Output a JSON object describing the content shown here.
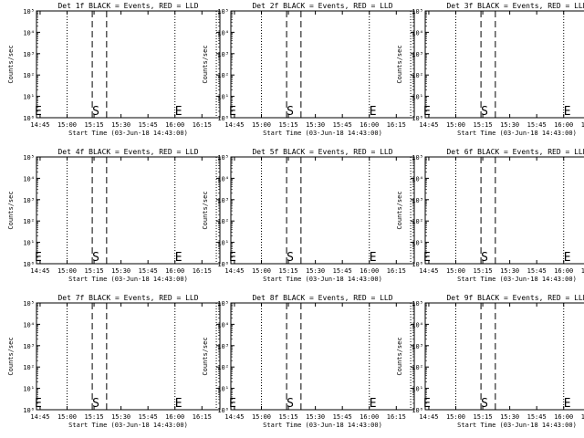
{
  "chart_data": [
    {
      "type": "line",
      "title": "Det 1f BLACK = Events, RED = LLD",
      "xlabel": "Start Time (03-Jun-18 14:43:00)",
      "ylabel": "Counts/sec",
      "xticks": [
        "14:45",
        "15:00",
        "15:15",
        "15:30",
        "15:45",
        "16:00",
        "16:15"
      ],
      "yticks": [
        "10⁰",
        "10¹",
        "10²",
        "10³",
        "10⁴",
        "10⁵"
      ],
      "yscale": "log",
      "ylim": [
        1,
        100000
      ],
      "dotted_lines": [
        "15:00",
        "16:00",
        "16:23"
      ],
      "dashed_lines": [
        "15:14",
        "15:22"
      ],
      "markers": [
        {
          "text": "E",
          "x": "14:44"
        },
        {
          "text": "S",
          "x": "15:16"
        },
        {
          "text": "E",
          "x": "16:02"
        }
      ],
      "series": []
    },
    {
      "type": "line",
      "title": "Det 2f BLACK = Events, RED = LLD",
      "xlabel": "Start Time (03-Jun-18 14:43:00)",
      "ylabel": "Counts/sec",
      "xticks": [
        "14:45",
        "15:00",
        "15:15",
        "15:30",
        "15:45",
        "16:00",
        "16:15"
      ],
      "yticks": [
        "10⁰",
        "10¹",
        "10²",
        "10³",
        "10⁴",
        "10⁵"
      ],
      "yscale": "log",
      "ylim": [
        1,
        100000
      ],
      "dotted_lines": [
        "15:00",
        "16:00",
        "16:23"
      ],
      "dashed_lines": [
        "15:14",
        "15:22"
      ],
      "markers": [
        {
          "text": "E",
          "x": "14:44"
        },
        {
          "text": "S",
          "x": "15:16"
        },
        {
          "text": "E",
          "x": "16:02"
        }
      ],
      "series": []
    },
    {
      "type": "line",
      "title": "Det 3f BLACK = Events, RED = LLD",
      "xlabel": "Start Time (03-Jun-18 14:43:00)",
      "ylabel": "Counts/sec",
      "xticks": [
        "14:45",
        "15:00",
        "15:15",
        "15:30",
        "15:45",
        "16:00",
        "16:15"
      ],
      "yticks": [
        "10⁰",
        "10¹",
        "10²",
        "10³",
        "10⁴",
        "10⁵"
      ],
      "yscale": "log",
      "ylim": [
        1,
        100000
      ],
      "dotted_lines": [
        "15:00",
        "16:00",
        "16:23"
      ],
      "dashed_lines": [
        "15:14",
        "15:22"
      ],
      "markers": [
        {
          "text": "E",
          "x": "14:44"
        },
        {
          "text": "S",
          "x": "15:16"
        },
        {
          "text": "E",
          "x": "16:02"
        }
      ],
      "series": []
    },
    {
      "type": "line",
      "title": "Det 4f BLACK = Events, RED = LLD",
      "xlabel": "Start Time (03-Jun-18 14:43:00)",
      "ylabel": "Counts/sec",
      "xticks": [
        "14:45",
        "15:00",
        "15:15",
        "15:30",
        "15:45",
        "16:00",
        "16:15"
      ],
      "yticks": [
        "10⁰",
        "10¹",
        "10²",
        "10³",
        "10⁴",
        "10⁵"
      ],
      "yscale": "log",
      "ylim": [
        1,
        100000
      ],
      "dotted_lines": [
        "15:00",
        "16:00",
        "16:23"
      ],
      "dashed_lines": [
        "15:14",
        "15:22"
      ],
      "markers": [
        {
          "text": "E",
          "x": "14:44"
        },
        {
          "text": "S",
          "x": "15:16"
        },
        {
          "text": "E",
          "x": "16:02"
        }
      ],
      "series": []
    },
    {
      "type": "line",
      "title": "Det 5f BLACK = Events, RED = LLD",
      "xlabel": "Start Time (03-Jun-18 14:43:00)",
      "ylabel": "Counts/sec",
      "xticks": [
        "14:45",
        "15:00",
        "15:15",
        "15:30",
        "15:45",
        "16:00",
        "16:15"
      ],
      "yticks": [
        "10⁰",
        "10¹",
        "10²",
        "10³",
        "10⁴",
        "10⁵"
      ],
      "yscale": "log",
      "ylim": [
        1,
        100000
      ],
      "dotted_lines": [
        "15:00",
        "16:00",
        "16:23"
      ],
      "dashed_lines": [
        "15:14",
        "15:22"
      ],
      "markers": [
        {
          "text": "E",
          "x": "14:44"
        },
        {
          "text": "S",
          "x": "15:16"
        },
        {
          "text": "E",
          "x": "16:02"
        }
      ],
      "series": []
    },
    {
      "type": "line",
      "title": "Det 6f BLACK = Events, RED = LLD",
      "xlabel": "Start Time (03-Jun-18 14:43:00)",
      "ylabel": "Counts/sec",
      "xticks": [
        "14:45",
        "15:00",
        "15:15",
        "15:30",
        "15:45",
        "16:00",
        "16:15"
      ],
      "yticks": [
        "10⁰",
        "10¹",
        "10²",
        "10³",
        "10⁴",
        "10⁵"
      ],
      "yscale": "log",
      "ylim": [
        1,
        100000
      ],
      "dotted_lines": [
        "15:00",
        "16:00",
        "16:23"
      ],
      "dashed_lines": [
        "15:14",
        "15:22"
      ],
      "markers": [
        {
          "text": "E",
          "x": "14:44"
        },
        {
          "text": "S",
          "x": "15:16"
        },
        {
          "text": "E",
          "x": "16:02"
        }
      ],
      "series": []
    },
    {
      "type": "line",
      "title": "Det 7f BLACK = Events, RED = LLD",
      "xlabel": "Start Time (03-Jun-18 14:43:00)",
      "ylabel": "Counts/sec",
      "xticks": [
        "14:45",
        "15:00",
        "15:15",
        "15:30",
        "15:45",
        "16:00",
        "16:15"
      ],
      "yticks": [
        "10⁰",
        "10¹",
        "10²",
        "10³",
        "10⁴",
        "10⁵"
      ],
      "yscale": "log",
      "ylim": [
        1,
        100000
      ],
      "dotted_lines": [
        "15:00",
        "16:00",
        "16:23"
      ],
      "dashed_lines": [
        "15:14",
        "15:22"
      ],
      "markers": [
        {
          "text": "E",
          "x": "14:44"
        },
        {
          "text": "S",
          "x": "15:16"
        },
        {
          "text": "E",
          "x": "16:02"
        }
      ],
      "series": []
    },
    {
      "type": "line",
      "title": "Det 8f BLACK = Events, RED = LLD",
      "xlabel": "Start Time (03-Jun-18 14:43:00)",
      "ylabel": "Counts/sec",
      "xticks": [
        "14:45",
        "15:00",
        "15:15",
        "15:30",
        "15:45",
        "16:00",
        "16:15"
      ],
      "yticks": [
        "10⁰",
        "10¹",
        "10²",
        "10³",
        "10⁴",
        "10⁵"
      ],
      "yscale": "log",
      "ylim": [
        1,
        100000
      ],
      "dotted_lines": [
        "15:00",
        "16:00",
        "16:23"
      ],
      "dashed_lines": [
        "15:14",
        "15:22"
      ],
      "markers": [
        {
          "text": "E",
          "x": "14:44"
        },
        {
          "text": "S",
          "x": "15:16"
        },
        {
          "text": "E",
          "x": "16:02"
        }
      ],
      "series": []
    },
    {
      "type": "line",
      "title": "Det 9f BLACK = Events, RED = LLD",
      "xlabel": "Start Time (03-Jun-18 14:43:00)",
      "ylabel": "Counts/sec",
      "xticks": [
        "14:45",
        "15:00",
        "15:15",
        "15:30",
        "15:45",
        "16:00",
        "16:15"
      ],
      "yticks": [
        "10⁰",
        "10¹",
        "10²",
        "10³",
        "10⁴",
        "10⁵"
      ],
      "yscale": "log",
      "ylim": [
        1,
        100000
      ],
      "dotted_lines": [
        "15:00",
        "16:00",
        "16:23"
      ],
      "dashed_lines": [
        "15:14",
        "15:22"
      ],
      "markers": [
        {
          "text": "E",
          "x": "14:44"
        },
        {
          "text": "S",
          "x": "15:16"
        },
        {
          "text": "E",
          "x": "16:02"
        }
      ],
      "series": []
    }
  ],
  "colors": {
    "axes": "#000000",
    "background": "#ffffff",
    "events": "#000000",
    "lld": "#ff0000"
  },
  "x_axis_range": [
    "14:43",
    "16:25"
  ]
}
